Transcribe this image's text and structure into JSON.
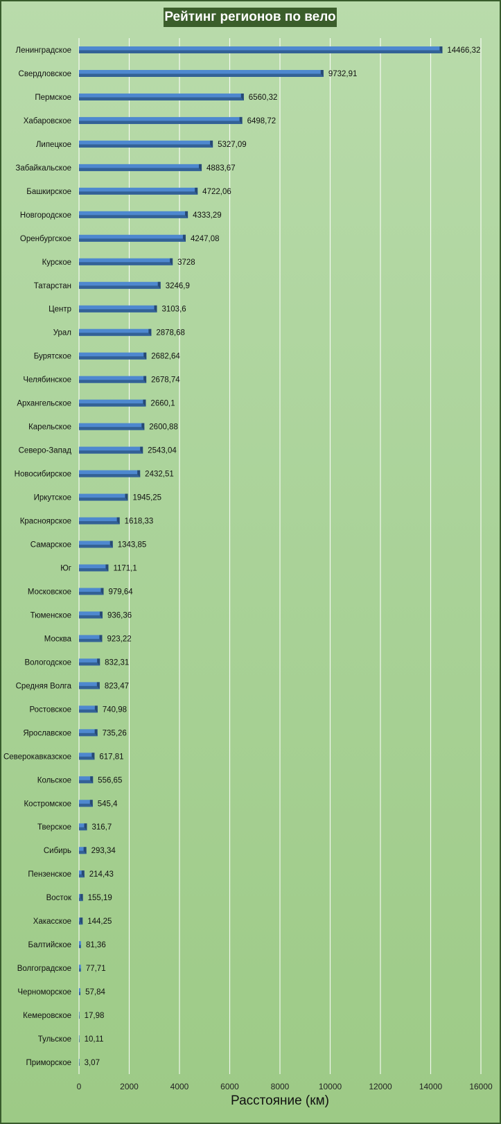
{
  "chart_data": {
    "type": "bar",
    "orientation": "horizontal",
    "title": "Рейтинг регионов по вело",
    "xlabel": "Расстояние (км)",
    "ylabel": "",
    "xlim": [
      0,
      16000
    ],
    "xticks": [
      0,
      2000,
      4000,
      6000,
      8000,
      10000,
      12000,
      14000,
      16000
    ],
    "grid": "vertical",
    "categories": [
      "Ленинградское",
      "Свердловское",
      "Пермское",
      "Хабаровское",
      "Липецкое",
      "Забайкальское",
      "Башкирское",
      "Новгородское",
      "Оренбургское",
      "Курское",
      "Татарстан",
      "Центр",
      "Урал",
      "Бурятское",
      "Челябинское",
      "Архангельское",
      "Карельское",
      "Северо-Запад",
      "Новосибирское",
      "Иркутское",
      "Красноярское",
      "Самарское",
      "Юг",
      "Московское",
      "Тюменское",
      "Москва",
      "Вологодское",
      "Средняя Волга",
      "Ростовское",
      "Ярославское",
      "Северокавказское",
      "Кольское",
      "Костромское",
      "Тверское",
      "Сибирь",
      "Пензенское",
      "Восток",
      "Хакасское",
      "Балтийское",
      "Волгоградское",
      "Черноморское",
      "Кемеровское",
      "Тульское",
      "Приморское"
    ],
    "values": [
      14466.32,
      9732.91,
      6560.32,
      6498.72,
      5327.09,
      4883.67,
      4722.06,
      4333.29,
      4247.08,
      3728,
      3246.9,
      3103.6,
      2878.68,
      2682.64,
      2678.74,
      2660.1,
      2600.88,
      2543.04,
      2432.51,
      1945.25,
      1618.33,
      1343.85,
      1171.1,
      979.64,
      936.36,
      923.22,
      832.31,
      823.47,
      740.98,
      735.26,
      617.81,
      556.65,
      545.4,
      316.7,
      293.34,
      214.43,
      155.19,
      144.25,
      81.36,
      77.71,
      57.84,
      17.98,
      10.11,
      3.07
    ],
    "value_labels": [
      "14466,32",
      "9732,91",
      "6560,32",
      "6498,72",
      "5327,09",
      "4883,67",
      "4722,06",
      "4333,29",
      "4247,08",
      "3728",
      "3246,9",
      "3103,6",
      "2878,68",
      "2682,64",
      "2678,74",
      "2660,1",
      "2600,88",
      "2543,04",
      "2432,51",
      "1945,25",
      "1618,33",
      "1343,85",
      "1171,1",
      "979,64",
      "936,36",
      "923,22",
      "832,31",
      "823,47",
      "740,98",
      "735,26",
      "617,81",
      "556,65",
      "545,4",
      "316,7",
      "293,34",
      "214,43",
      "155,19",
      "144,25",
      "81,36",
      "77,71",
      "57,84",
      "17,98",
      "10,11",
      "3,07"
    ],
    "bar_color": "#4e88cf",
    "bar_shade_color": "#2f5a8c",
    "grid_color": "#ffffff",
    "title_bg_color": "#3b5e2b"
  }
}
